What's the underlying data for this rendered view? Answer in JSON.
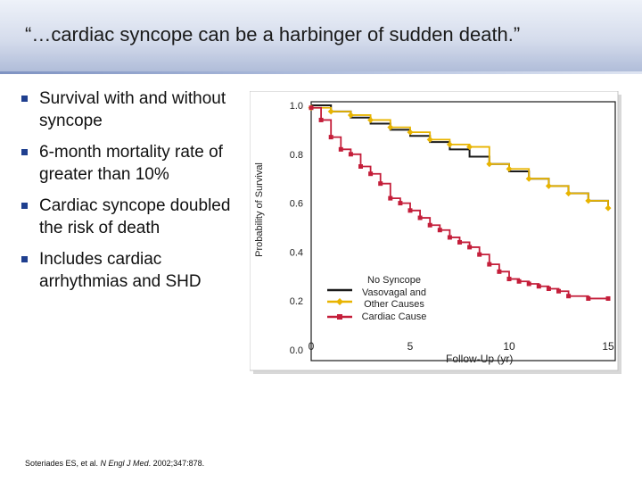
{
  "slide": {
    "title": "“…cardiac syncope can be a harbinger of sudden death.”",
    "bullets": [
      "Survival with and without syncope",
      "6-month mortality rate of greater than 10%",
      "Cardiac syncope doubled the risk of death",
      "Includes cardiac arrhythmias and SHD"
    ],
    "footnote": {
      "authors": "Soteriades ES, et al. ",
      "journal": "N Engl J Med",
      "citation": ". 2002;347:878."
    }
  },
  "chart_data": {
    "type": "line",
    "title": "",
    "xlabel": "Follow-Up (yr)",
    "ylabel": "Probability of Survival",
    "xlim": [
      0,
      15
    ],
    "ylim": [
      0,
      1
    ],
    "x_ticks": [
      "0",
      "5",
      "10",
      "15"
    ],
    "y_ticks": [
      "0.0",
      "0.2",
      "0.4",
      "0.6",
      "0.8",
      "1.0"
    ],
    "legend_position": "center-right",
    "series": [
      {
        "name": "No Syncope",
        "color": "#1a1a1a",
        "marker": "none",
        "points": [
          [
            0,
            1.0
          ],
          [
            1,
            0.975
          ],
          [
            2,
            0.95
          ],
          [
            3,
            0.925
          ],
          [
            4,
            0.9
          ],
          [
            5,
            0.875
          ],
          [
            6,
            0.85
          ],
          [
            7,
            0.82
          ],
          [
            8,
            0.79
          ],
          [
            9,
            0.76
          ],
          [
            10,
            0.73
          ],
          [
            11,
            0.7
          ],
          [
            12,
            0.67
          ],
          [
            13,
            0.64
          ],
          [
            14,
            0.61
          ],
          [
            15,
            0.58
          ]
        ]
      },
      {
        "name": "Vasovagal and Other Causes",
        "color": "#e8b400",
        "marker": "diamond",
        "points": [
          [
            0,
            0.99
          ],
          [
            1,
            0.975
          ],
          [
            2,
            0.96
          ],
          [
            3,
            0.94
          ],
          [
            4,
            0.91
          ],
          [
            5,
            0.89
          ],
          [
            6,
            0.86
          ],
          [
            7,
            0.84
          ],
          [
            8,
            0.83
          ],
          [
            9,
            0.76
          ],
          [
            10,
            0.74
          ],
          [
            11,
            0.7
          ],
          [
            12,
            0.67
          ],
          [
            13,
            0.64
          ],
          [
            14,
            0.61
          ],
          [
            15,
            0.58
          ]
        ]
      },
      {
        "name": "Cardiac Cause",
        "color": "#c41e3a",
        "marker": "square",
        "points": [
          [
            0,
            0.99
          ],
          [
            0.5,
            0.94
          ],
          [
            1,
            0.87
          ],
          [
            1.5,
            0.82
          ],
          [
            2,
            0.8
          ],
          [
            2.5,
            0.75
          ],
          [
            3,
            0.72
          ],
          [
            3.5,
            0.68
          ],
          [
            4,
            0.62
          ],
          [
            4.5,
            0.6
          ],
          [
            5,
            0.57
          ],
          [
            5.5,
            0.54
          ],
          [
            6,
            0.51
          ],
          [
            6.5,
            0.49
          ],
          [
            7,
            0.46
          ],
          [
            7.5,
            0.44
          ],
          [
            8,
            0.42
          ],
          [
            8.5,
            0.39
          ],
          [
            9,
            0.35
          ],
          [
            9.5,
            0.32
          ],
          [
            10,
            0.29
          ],
          [
            10.5,
            0.28
          ],
          [
            11,
            0.27
          ],
          [
            11.5,
            0.26
          ],
          [
            12,
            0.25
          ],
          [
            12.5,
            0.24
          ],
          [
            13,
            0.22
          ],
          [
            14,
            0.21
          ],
          [
            15,
            0.21
          ]
        ]
      }
    ]
  }
}
